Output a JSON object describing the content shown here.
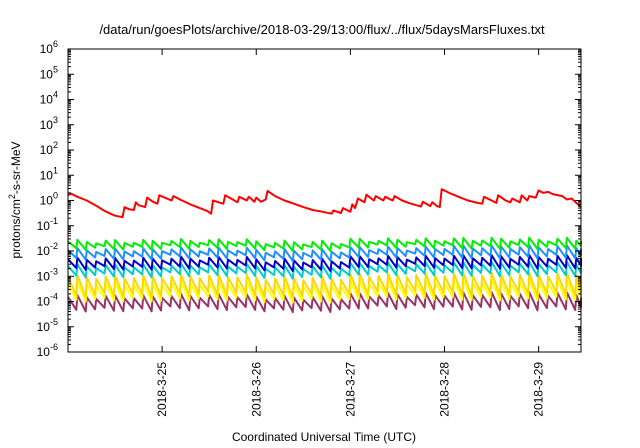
{
  "chart_data": {
    "type": "line",
    "title": "/data/run/goesPlots/archive/2018-03-29/13:00/flux/../flux/5daysMarsFluxes.txt",
    "xlabel": "Coordinated Universal Time (UTC)",
    "ylabel": "protons/cm2-s-sr-MeV",
    "ylabel_parts": {
      "pre": "protons/cm",
      "sup": "2",
      "post": "-s-sr-MeV"
    },
    "yscale": "log",
    "ylim_exp": [
      -6,
      6
    ],
    "yticks": [
      {
        "base": "10",
        "exp": "-6"
      },
      {
        "base": "10",
        "exp": "-5"
      },
      {
        "base": "10",
        "exp": "-4"
      },
      {
        "base": "10",
        "exp": "-3"
      },
      {
        "base": "10",
        "exp": "-2"
      },
      {
        "base": "10",
        "exp": "-1"
      },
      {
        "base": "10",
        "exp": "0"
      },
      {
        "base": "10",
        "exp": "1"
      },
      {
        "base": "10",
        "exp": "2"
      },
      {
        "base": "10",
        "exp": "3"
      },
      {
        "base": "10",
        "exp": "4"
      },
      {
        "base": "10",
        "exp": "5"
      },
      {
        "base": "10",
        "exp": "6"
      }
    ],
    "xlim_days": [
      0,
      5.45
    ],
    "xticks": [
      {
        "label": "2018-3-25",
        "day": 1.0
      },
      {
        "label": "2018-3-26",
        "day": 2.0
      },
      {
        "label": "2018-3-27",
        "day": 3.0
      },
      {
        "label": "2018-3-28",
        "day": 4.0
      },
      {
        "label": "2018-3-29",
        "day": 5.0
      }
    ],
    "grid": false,
    "legend": "none",
    "series": [
      {
        "color": "#ff0000",
        "sawtooth": false,
        "points": [
          [
            0.0,
            1.6
          ],
          [
            0.03,
            1.9
          ],
          [
            0.1,
            1.4
          ],
          [
            0.2,
            1.0
          ],
          [
            0.3,
            0.62
          ],
          [
            0.38,
            0.4
          ],
          [
            0.45,
            0.3
          ],
          [
            0.5,
            0.25
          ],
          [
            0.58,
            0.22
          ],
          [
            0.6,
            0.55
          ],
          [
            0.65,
            0.45
          ],
          [
            0.7,
            0.42
          ],
          [
            0.72,
            0.85
          ],
          [
            0.75,
            0.65
          ],
          [
            0.82,
            0.55
          ],
          [
            0.84,
            1.3
          ],
          [
            0.9,
            0.9
          ],
          [
            0.95,
            0.75
          ],
          [
            0.97,
            1.6
          ],
          [
            1.05,
            1.2
          ],
          [
            1.1,
            1.0
          ],
          [
            1.12,
            1.5
          ],
          [
            1.2,
            1.05
          ],
          [
            1.3,
            0.7
          ],
          [
            1.4,
            0.5
          ],
          [
            1.48,
            0.38
          ],
          [
            1.52,
            0.3
          ],
          [
            1.54,
            1.0
          ],
          [
            1.6,
            0.85
          ],
          [
            1.65,
            0.75
          ],
          [
            1.67,
            1.6
          ],
          [
            1.75,
            1.1
          ],
          [
            1.8,
            0.85
          ],
          [
            1.82,
            1.4
          ],
          [
            1.9,
            1.0
          ],
          [
            1.92,
            1.4
          ],
          [
            1.98,
            0.9
          ],
          [
            2.0,
            1.3
          ],
          [
            2.05,
            0.9
          ],
          [
            2.1,
            1.1
          ],
          [
            2.12,
            2.4
          ],
          [
            2.2,
            1.5
          ],
          [
            2.3,
            1.0
          ],
          [
            2.4,
            0.75
          ],
          [
            2.5,
            0.55
          ],
          [
            2.6,
            0.42
          ],
          [
            2.7,
            0.36
          ],
          [
            2.8,
            0.3
          ],
          [
            2.82,
            0.4
          ],
          [
            2.9,
            0.32
          ],
          [
            2.92,
            0.5
          ],
          [
            3.0,
            0.36
          ],
          [
            3.02,
            0.7
          ],
          [
            3.05,
            0.5
          ],
          [
            3.08,
            1.2
          ],
          [
            3.15,
            0.85
          ],
          [
            3.17,
            1.7
          ],
          [
            3.25,
            1.0
          ],
          [
            3.27,
            1.5
          ],
          [
            3.35,
            1.0
          ],
          [
            3.37,
            1.4
          ],
          [
            3.45,
            1.0
          ],
          [
            3.47,
            1.5
          ],
          [
            3.55,
            1.0
          ],
          [
            3.62,
            0.8
          ],
          [
            3.7,
            0.65
          ],
          [
            3.75,
            0.58
          ],
          [
            3.77,
            0.9
          ],
          [
            3.85,
            0.6
          ],
          [
            3.87,
            0.85
          ],
          [
            3.92,
            0.6
          ],
          [
            3.95,
            0.55
          ],
          [
            3.97,
            2.8
          ],
          [
            4.05,
            2.0
          ],
          [
            4.15,
            1.4
          ],
          [
            4.25,
            1.0
          ],
          [
            4.35,
            0.8
          ],
          [
            4.4,
            0.75
          ],
          [
            4.42,
            1.4
          ],
          [
            4.5,
            1.0
          ],
          [
            4.55,
            0.8
          ],
          [
            4.57,
            1.6
          ],
          [
            4.65,
            1.0
          ],
          [
            4.7,
            0.85
          ],
          [
            4.72,
            1.2
          ],
          [
            4.8,
            0.85
          ],
          [
            4.82,
            1.6
          ],
          [
            4.88,
            1.0
          ],
          [
            4.9,
            1.5
          ],
          [
            4.97,
            1.3
          ],
          [
            5.0,
            2.5
          ],
          [
            5.05,
            2.0
          ],
          [
            5.1,
            2.2
          ],
          [
            5.15,
            1.8
          ],
          [
            5.25,
            1.5
          ],
          [
            5.3,
            1.1
          ],
          [
            5.35,
            1.2
          ],
          [
            5.4,
            0.8
          ],
          [
            5.45,
            0.55
          ]
        ]
      },
      {
        "color": "#00ee00",
        "sawtooth": true,
        "period": 0.1,
        "low": [
          0.011,
          0.012,
          0.01,
          0.013,
          0.012
        ],
        "high": [
          0.028,
          0.03,
          0.026,
          0.032,
          0.034
        ]
      },
      {
        "color": "#1e90ff",
        "sawtooth": true,
        "period": 0.1,
        "low": [
          0.0045,
          0.005,
          0.004,
          0.0055,
          0.005
        ],
        "high": [
          0.013,
          0.014,
          0.012,
          0.015,
          0.017
        ]
      },
      {
        "color": "#0000cc",
        "sawtooth": true,
        "period": 0.1,
        "low": [
          0.0018,
          0.002,
          0.0016,
          0.0022,
          0.002
        ],
        "high": [
          0.0055,
          0.006,
          0.005,
          0.0065,
          0.007
        ]
      },
      {
        "color": "#00cccc",
        "sawtooth": true,
        "period": 0.1,
        "low": [
          0.0009,
          0.001,
          0.0008,
          0.0011,
          0.001
        ],
        "high": [
          0.003,
          0.0032,
          0.0028,
          0.0035,
          0.0038
        ]
      },
      {
        "color": "#ffd700",
        "sawtooth": true,
        "period": 0.1,
        "low": [
          0.00015,
          0.00017,
          0.00014,
          0.00018,
          0.00017
        ],
        "high": [
          0.0011,
          0.0012,
          0.001,
          0.0013,
          0.0014
        ]
      },
      {
        "color": "#ffff00",
        "sawtooth": true,
        "period": 0.1,
        "low": [
          0.0001,
          0.00011,
          9e-05,
          0.00012,
          0.00011
        ],
        "high": [
          0.0006,
          0.00065,
          0.00055,
          0.0007,
          0.00075
        ]
      },
      {
        "color": "#993366",
        "sawtooth": true,
        "period": 0.1,
        "low": [
          4e-05,
          4.5e-05,
          3.8e-05,
          5e-05,
          4.5e-05
        ],
        "high": [
          0.00018,
          0.0002,
          0.00017,
          0.00022,
          0.00024
        ]
      }
    ]
  }
}
